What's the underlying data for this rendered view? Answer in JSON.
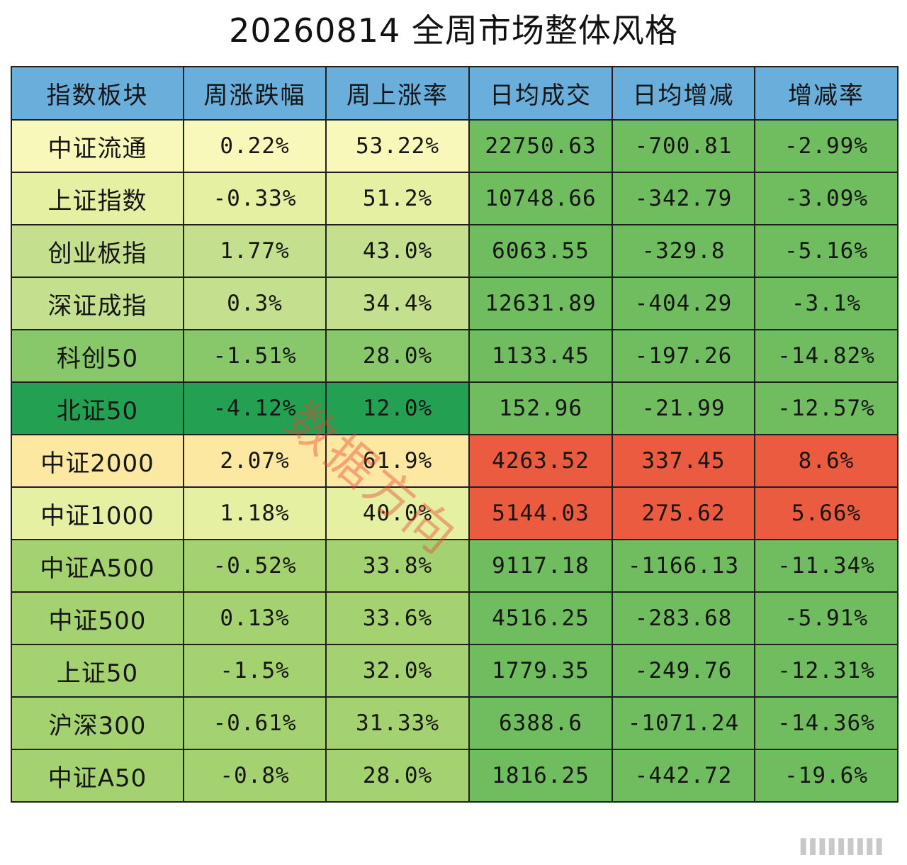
{
  "title": "20260814 全周市场整体风格",
  "watermark": "数据方向",
  "colors": {
    "header": "#6aaedc",
    "pale_yellow": "#f7f8b9",
    "yellow_green": "#e6f0a3",
    "light_green": "#c4e08e",
    "mid_green": "#a4d271",
    "green": "#88c86a",
    "cell_green": "#6fbd5e",
    "dark_green": "#24a052",
    "peach": "#fde8a1",
    "red": "#eb5b3f"
  },
  "chart_data": {
    "type": "table",
    "columns": [
      "指数板块",
      "周涨跌幅",
      "周上涨率",
      "日均成交",
      "日均增减",
      "增减率"
    ],
    "rows": [
      [
        "中证流通",
        "0.22%",
        "53.22%",
        "22750.63",
        "-700.81",
        "-2.99%"
      ],
      [
        "上证指数",
        "-0.33%",
        "51.2%",
        "10748.66",
        "-342.79",
        "-3.09%"
      ],
      [
        "创业板指",
        "1.77%",
        "43.0%",
        "6063.55",
        "-329.8",
        "-5.16%"
      ],
      [
        "深证成指",
        "0.3%",
        "34.4%",
        "12631.89",
        "-404.29",
        "-3.1%"
      ],
      [
        "科创50",
        "-1.51%",
        "28.0%",
        "1133.45",
        "-197.26",
        "-14.82%"
      ],
      [
        "北证50",
        "-4.12%",
        "12.0%",
        "152.96",
        "-21.99",
        "-12.57%"
      ],
      [
        "中证2000",
        "2.07%",
        "61.9%",
        "4263.52",
        "337.45",
        "8.6%"
      ],
      [
        "中证1000",
        "1.18%",
        "40.0%",
        "5144.03",
        "275.62",
        "5.66%"
      ],
      [
        "中证A500",
        "-0.52%",
        "33.8%",
        "9117.18",
        "-1166.13",
        "-11.34%"
      ],
      [
        "中证500",
        "0.13%",
        "33.6%",
        "4516.25",
        "-283.68",
        "-5.91%"
      ],
      [
        "上证50",
        "-1.5%",
        "32.0%",
        "1779.35",
        "-249.76",
        "-12.31%"
      ],
      [
        "沪深300",
        "-0.61%",
        "31.33%",
        "6388.6",
        "-1071.24",
        "-14.36%"
      ],
      [
        "中证A50",
        "-0.8%",
        "28.0%",
        "1816.25",
        "-442.72",
        "-19.6%"
      ]
    ],
    "row_colors": [
      [
        "pale_yellow",
        "pale_yellow",
        "pale_yellow",
        "cell_green",
        "cell_green",
        "cell_green"
      ],
      [
        "yellow_green",
        "yellow_green",
        "yellow_green",
        "cell_green",
        "cell_green",
        "cell_green"
      ],
      [
        "light_green",
        "light_green",
        "light_green",
        "cell_green",
        "cell_green",
        "cell_green"
      ],
      [
        "light_green",
        "light_green",
        "light_green",
        "cell_green",
        "cell_green",
        "cell_green"
      ],
      [
        "green",
        "green",
        "green",
        "cell_green",
        "cell_green",
        "cell_green"
      ],
      [
        "dark_green",
        "dark_green",
        "dark_green",
        "cell_green",
        "cell_green",
        "cell_green"
      ],
      [
        "peach",
        "peach",
        "peach",
        "red",
        "red",
        "red"
      ],
      [
        "yellow_green",
        "yellow_green",
        "yellow_green",
        "red",
        "red",
        "red"
      ],
      [
        "mid_green",
        "mid_green",
        "mid_green",
        "cell_green",
        "cell_green",
        "cell_green"
      ],
      [
        "mid_green",
        "mid_green",
        "mid_green",
        "cell_green",
        "cell_green",
        "cell_green"
      ],
      [
        "mid_green",
        "mid_green",
        "mid_green",
        "cell_green",
        "cell_green",
        "cell_green"
      ],
      [
        "mid_green",
        "mid_green",
        "mid_green",
        "cell_green",
        "cell_green",
        "cell_green"
      ],
      [
        "mid_green",
        "mid_green",
        "mid_green",
        "cell_green",
        "cell_green",
        "cell_green"
      ]
    ]
  }
}
